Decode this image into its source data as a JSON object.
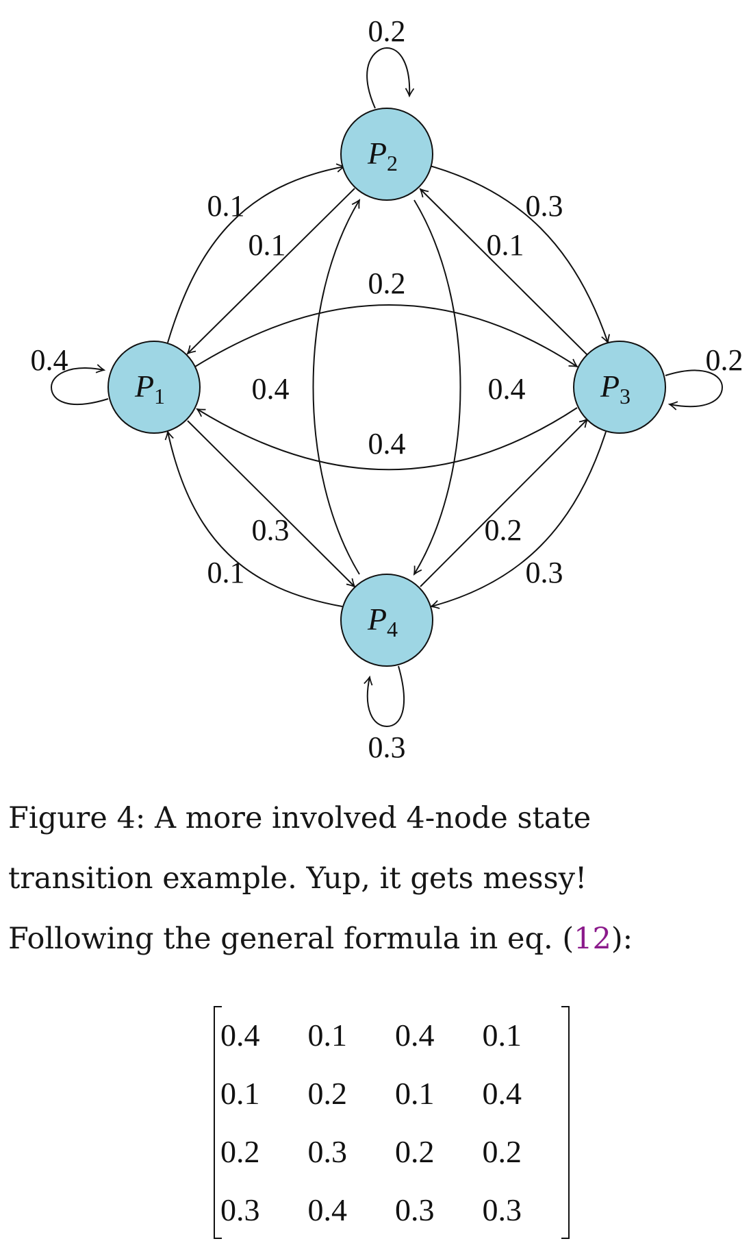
{
  "diagram": {
    "nodes": [
      {
        "id": "P1",
        "main": "P",
        "sub": "1"
      },
      {
        "id": "P2",
        "main": "P",
        "sub": "2"
      },
      {
        "id": "P3",
        "main": "P",
        "sub": "3"
      },
      {
        "id": "P4",
        "main": "P",
        "sub": "4"
      }
    ],
    "edges": [
      {
        "from": "P2",
        "to": "P2",
        "weight": "0.2"
      },
      {
        "from": "P1",
        "to": "P1",
        "weight": "0.4"
      },
      {
        "from": "P3",
        "to": "P3",
        "weight": "0.2"
      },
      {
        "from": "P4",
        "to": "P4",
        "weight": "0.3"
      },
      {
        "from": "P1",
        "to": "P2",
        "weight": "0.1"
      },
      {
        "from": "P2",
        "to": "P1",
        "weight": "0.1"
      },
      {
        "from": "P2",
        "to": "P3",
        "weight": "0.3"
      },
      {
        "from": "P3",
        "to": "P2",
        "weight": "0.1"
      },
      {
        "from": "P1",
        "to": "P3",
        "weight": "0.2"
      },
      {
        "from": "P3",
        "to": "P1",
        "weight": "0.4"
      },
      {
        "from": "P4",
        "to": "P2",
        "weight": "0.4"
      },
      {
        "from": "P2",
        "to": "P4",
        "weight": "0.4"
      },
      {
        "from": "P1",
        "to": "P4",
        "weight": "0.3"
      },
      {
        "from": "P4",
        "to": "P1",
        "weight": "0.1"
      },
      {
        "from": "P4",
        "to": "P3",
        "weight": "0.2"
      },
      {
        "from": "P3",
        "to": "P4",
        "weight": "0.3"
      }
    ]
  },
  "caption": {
    "label": "Figure 4:",
    "text": "A more involved 4-node state transition example. Yup, it gets messy! Following the general formula in eq. (",
    "ref": "12",
    "after": "):"
  },
  "matrix": {
    "rows": [
      [
        "0.4",
        "0.1",
        "0.4",
        "0.1"
      ],
      [
        "0.1",
        "0.2",
        "0.1",
        "0.4"
      ],
      [
        "0.2",
        "0.3",
        "0.2",
        "0.2"
      ],
      [
        "0.3",
        "0.4",
        "0.3",
        "0.3"
      ]
    ]
  }
}
